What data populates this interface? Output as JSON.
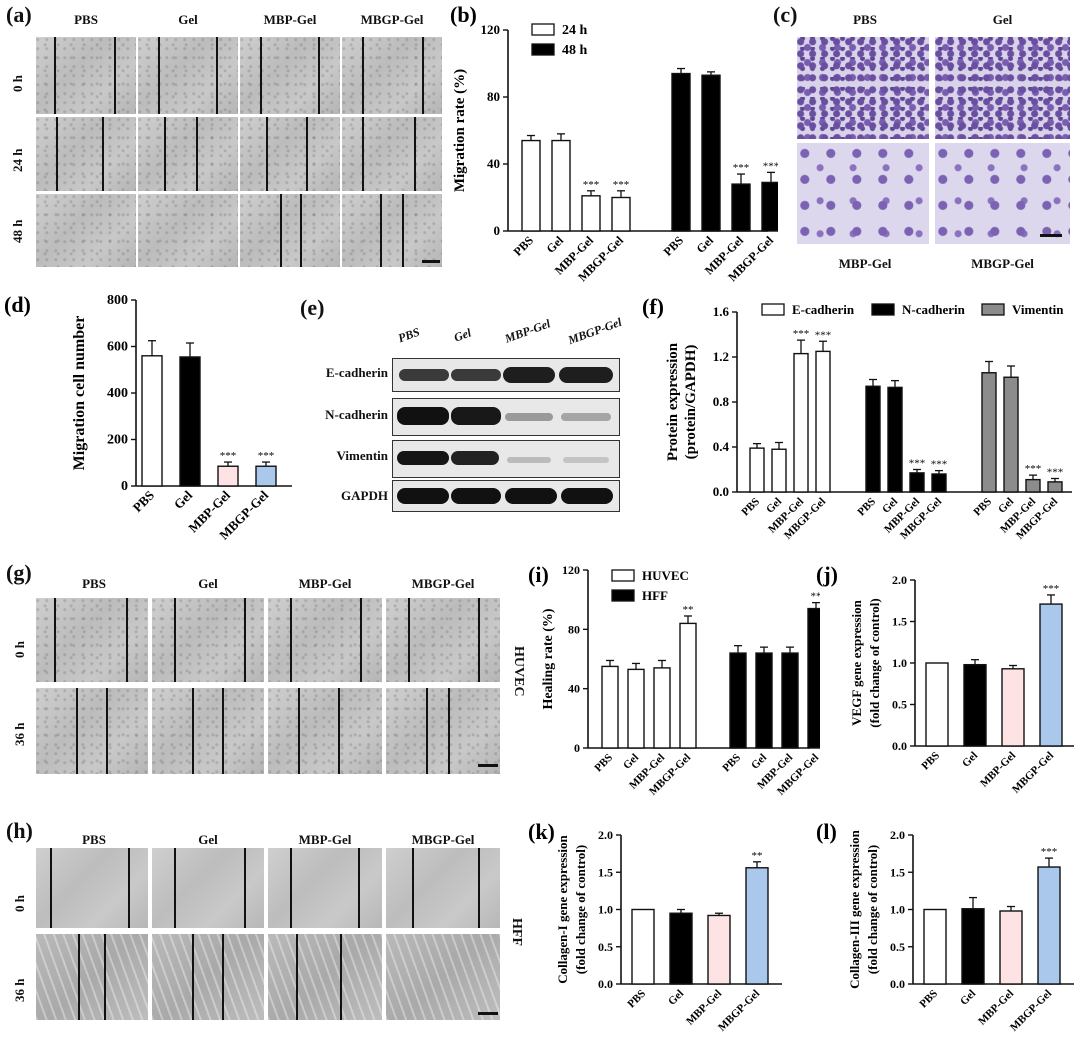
{
  "panels": {
    "a": {
      "label": "(a)",
      "cols": [
        "PBS",
        "Gel",
        "MBP-Gel",
        "MBGP-Gel"
      ],
      "rows": [
        "0 h",
        "24 h",
        "48 h"
      ]
    },
    "c": {
      "label": "(c)",
      "cols_top": [
        "PBS",
        "Gel"
      ],
      "cols_bottom": [
        "MBP-Gel",
        "MBGP-Gel"
      ]
    },
    "e": {
      "label": "(e)",
      "cols": [
        "PBS",
        "Gel",
        "MBP-Gel",
        "MBGP-Gel"
      ],
      "rows": [
        "E-cadherin",
        "N-cadherin",
        "Vimentin",
        "GAPDH"
      ]
    },
    "g": {
      "label": "(g)",
      "cols": [
        "PBS",
        "Gel",
        "MBP-Gel",
        "MBGP-Gel"
      ],
      "rows": [
        "0 h",
        "36 h"
      ],
      "side": "HUVEC"
    },
    "h": {
      "label": "(h)",
      "cols": [
        "PBS",
        "Gel",
        "MBP-Gel",
        "MBGP-Gel"
      ],
      "rows": [
        "0 h",
        "36 h"
      ],
      "side": "HFF"
    }
  },
  "chart_data": [
    {
      "id": "b",
      "label": "(b)",
      "type": "bar",
      "ylabel": "Migration rate (%)",
      "ylim": [
        0,
        120
      ],
      "yticks": [
        0,
        40,
        80,
        120
      ],
      "categories": [
        "PBS",
        "Gel",
        "MBP-Gel",
        "MBGP-Gel"
      ],
      "series": [
        {
          "name": "24 h",
          "color": "#ffffff",
          "values": [
            54,
            54,
            21,
            20
          ],
          "errors": [
            3,
            4,
            3,
            4
          ],
          "sig": [
            "",
            "",
            "***",
            "***"
          ]
        },
        {
          "name": "48 h",
          "color": "#000000",
          "values": [
            94,
            93,
            28,
            29
          ],
          "errors": [
            3,
            2,
            6,
            6
          ],
          "sig": [
            "",
            "",
            "***",
            "***"
          ]
        }
      ]
    },
    {
      "id": "d",
      "label": "(d)",
      "type": "bar",
      "ylabel": "Migration cell number",
      "ylim": [
        0,
        800
      ],
      "yticks": [
        0,
        200,
        400,
        600,
        800
      ],
      "categories": [
        "PBS",
        "Gel",
        "MBP-Gel",
        "MBGP-Gel"
      ],
      "values": [
        560,
        555,
        85,
        85
      ],
      "errors": [
        65,
        60,
        18,
        18
      ],
      "colors": [
        "#ffffff",
        "#000000",
        "#fde3e3",
        "#a9c8ec"
      ],
      "sig": [
        "",
        "",
        "***",
        "***"
      ]
    },
    {
      "id": "f",
      "label": "(f)",
      "type": "bar",
      "ylabel": "Protein expression",
      "ylabel2": "(protein/GAPDH)",
      "ylim": [
        0,
        1.6
      ],
      "yticks": [
        "0.0",
        "0.4",
        "0.8",
        "1.2",
        "1.6"
      ],
      "categories": [
        "PBS",
        "Gel",
        "MBP-Gel",
        "MBGP-Gel"
      ],
      "series": [
        {
          "name": "E-cadherin",
          "color": "#ffffff",
          "values": [
            0.39,
            0.38,
            1.23,
            1.25
          ],
          "errors": [
            0.04,
            0.06,
            0.12,
            0.09
          ],
          "sig": [
            "",
            "",
            "***",
            "***"
          ]
        },
        {
          "name": "N-cadherin",
          "color": "#000000",
          "values": [
            0.94,
            0.93,
            0.17,
            0.16
          ],
          "errors": [
            0.06,
            0.06,
            0.03,
            0.03
          ],
          "sig": [
            "",
            "",
            "***",
            "***"
          ]
        },
        {
          "name": "Vimentin",
          "color": "#8c8c8c",
          "values": [
            1.06,
            1.02,
            0.11,
            0.09
          ],
          "errors": [
            0.1,
            0.1,
            0.04,
            0.03
          ],
          "sig": [
            "",
            "",
            "***",
            "***"
          ]
        }
      ]
    },
    {
      "id": "i",
      "label": "(i)",
      "type": "bar",
      "ylabel": "Healing rate (%)",
      "ylim": [
        0,
        120
      ],
      "yticks": [
        0,
        40,
        80,
        120
      ],
      "categories": [
        "PBS",
        "Gel",
        "MBP-Gel",
        "MBGP-Gel"
      ],
      "series": [
        {
          "name": "HUVEC",
          "color": "#ffffff",
          "values": [
            55,
            53,
            54,
            84
          ],
          "errors": [
            4,
            4,
            5,
            5
          ],
          "sig": [
            "",
            "",
            "",
            "**"
          ]
        },
        {
          "name": "HFF",
          "color": "#000000",
          "values": [
            64,
            64,
            64,
            94
          ],
          "errors": [
            5,
            4,
            4,
            4
          ],
          "sig": [
            "",
            "",
            "",
            "**"
          ]
        }
      ]
    },
    {
      "id": "j",
      "label": "(j)",
      "type": "bar",
      "ylabel": "VEGF gene expression",
      "ylabel2": "(fold change of control)",
      "ylim": [
        0,
        2.0
      ],
      "yticks": [
        "0.0",
        "0.5",
        "1.0",
        "1.5",
        "2.0"
      ],
      "categories": [
        "PBS",
        "Gel",
        "MBP-Gel",
        "MBGP-Gel"
      ],
      "values": [
        1.0,
        0.98,
        0.93,
        1.71
      ],
      "errors": [
        0,
        0.06,
        0.04,
        0.11
      ],
      "colors": [
        "#ffffff",
        "#000000",
        "#fde3e3",
        "#a9c8ec"
      ],
      "sig": [
        "",
        "",
        "",
        "***"
      ]
    },
    {
      "id": "k",
      "label": "(k)",
      "type": "bar",
      "ylabel": "Collagen-I gene expression",
      "ylabel2": "(fold change of control)",
      "ylim": [
        0,
        2.0
      ],
      "yticks": [
        "0.0",
        "0.5",
        "1.0",
        "1.5",
        "2.0"
      ],
      "categories": [
        "PBS",
        "Gel",
        "MBP-Gel",
        "MBGP-Gel"
      ],
      "values": [
        1.0,
        0.95,
        0.92,
        1.56
      ],
      "errors": [
        0,
        0.05,
        0.03,
        0.08
      ],
      "colors": [
        "#ffffff",
        "#000000",
        "#fde3e3",
        "#a9c8ec"
      ],
      "sig": [
        "",
        "",
        "",
        "**"
      ]
    },
    {
      "id": "l",
      "label": "(l)",
      "type": "bar",
      "ylabel": "Collagen-III gene expression",
      "ylabel2": "(fold change of control)",
      "ylim": [
        0,
        2.0
      ],
      "yticks": [
        "0.0",
        "0.5",
        "1.0",
        "1.5",
        "2.0"
      ],
      "categories": [
        "PBS",
        "Gel",
        "MBP-Gel",
        "MBGP-Gel"
      ],
      "values": [
        1.0,
        1.01,
        0.98,
        1.57
      ],
      "errors": [
        0,
        0.15,
        0.06,
        0.12
      ],
      "colors": [
        "#ffffff",
        "#000000",
        "#fde3e3",
        "#a9c8ec"
      ],
      "sig": [
        "",
        "",
        "",
        "***"
      ]
    }
  ]
}
